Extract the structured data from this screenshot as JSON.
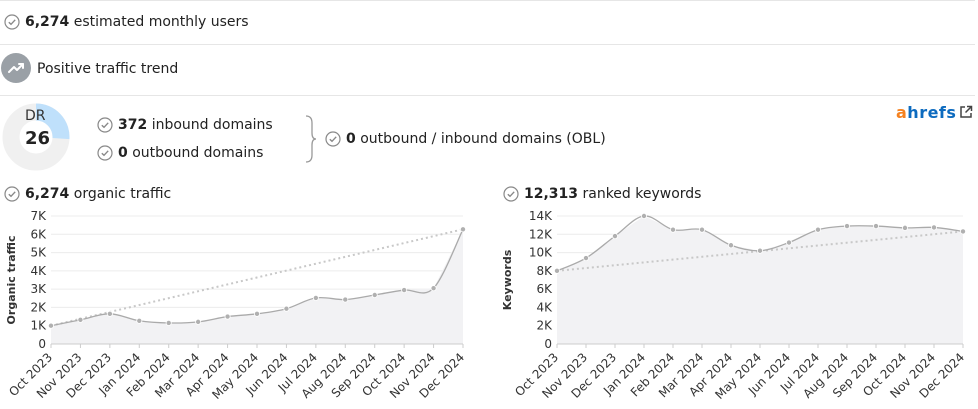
{
  "users": {
    "count": "6,274",
    "label": "estimated monthly users"
  },
  "trend": {
    "label": "Positive traffic trend"
  },
  "dr": {
    "label": "DR",
    "value": "26",
    "fraction": 0.26
  },
  "domains": {
    "inbound_count": "372",
    "inbound_label": "inbound domains",
    "outbound_count": "0",
    "outbound_label": "outbound domains",
    "obl_count": "0",
    "obl_label": "outbound / inbound domains (OBL)"
  },
  "brand": {
    "a": "a",
    "rest": "hrefs",
    "link_icon": "external-link-icon"
  },
  "colors": {
    "line": "#aaaaaa",
    "area": "#f2f2f4",
    "trend": "#c8c8c8",
    "dr_fill": "#bfe0fb",
    "dr_ring": "#f0f0f0",
    "brand_orange": "#f58220",
    "brand_blue": "#0d6bbf"
  },
  "organic": {
    "count": "6,274",
    "label": "organic traffic"
  },
  "keywords": {
    "count": "12,313",
    "label": "ranked keywords"
  },
  "chart_data": [
    {
      "type": "line",
      "ylabel": "Organic traffic",
      "categories": [
        "Oct 2023",
        "Nov 2023",
        "Dec 2023",
        "Jan 2024",
        "Feb 2024",
        "Mar 2024",
        "Apr 2024",
        "May 2024",
        "Jun 2024",
        "Jul 2024",
        "Aug 2024",
        "Sep 2024",
        "Oct 2024",
        "Nov 2024",
        "Dec 2024"
      ],
      "values": [
        1000,
        1320,
        1650,
        1270,
        1150,
        1210,
        1500,
        1650,
        1930,
        2520,
        2430,
        2680,
        2950,
        3050,
        6274
      ],
      "trend": [
        1000,
        6274
      ],
      "yticks": [
        "0",
        "1K",
        "2K",
        "3K",
        "4K",
        "5K",
        "6K",
        "7K"
      ],
      "ylim": [
        0,
        7000
      ],
      "grid": true
    },
    {
      "type": "line",
      "ylabel": "Keywords",
      "categories": [
        "Oct 2023",
        "Nov 2023",
        "Dec 2023",
        "Jan 2024",
        "Feb 2024",
        "Mar 2024",
        "Apr 2024",
        "May 2024",
        "Jun 2024",
        "Jul 2024",
        "Aug 2024",
        "Sep 2024",
        "Oct 2024",
        "Nov 2024",
        "Dec 2024"
      ],
      "values": [
        8000,
        9400,
        11800,
        14000,
        12500,
        12500,
        10800,
        10200,
        11100,
        12500,
        12900,
        12900,
        12700,
        12750,
        12313
      ],
      "trend": [
        8000,
        12313
      ],
      "yticks": [
        "0",
        "2K",
        "4K",
        "6K",
        "8K",
        "10K",
        "12K",
        "14K"
      ],
      "ylim": [
        0,
        14000
      ],
      "grid": true
    }
  ]
}
